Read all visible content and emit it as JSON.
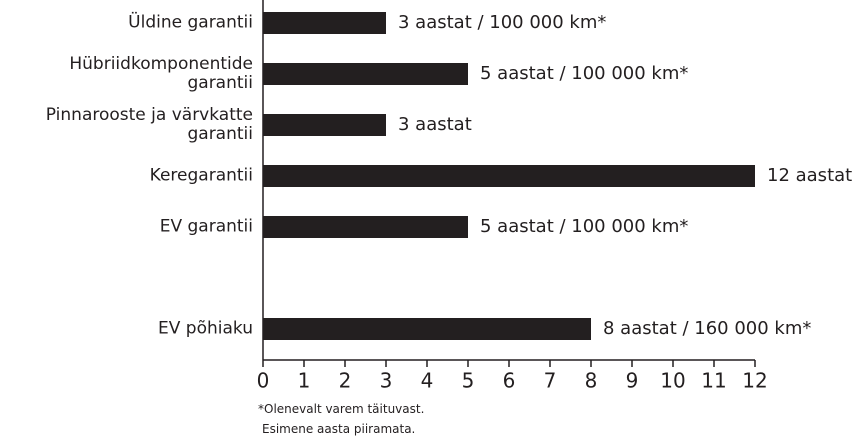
{
  "chart_data": {
    "type": "barh",
    "categories": [
      "Üldine garantii",
      "Hübriidkomponentide\ngarantii",
      "Pinnarooste ja värvkatte\ngarantii",
      "Keregarantii",
      "EV garantii",
      null,
      "EV põhiaku"
    ],
    "values": [
      3,
      5,
      3,
      12,
      5,
      null,
      8
    ],
    "value_labels": [
      "3 aastat / 100 000 km*",
      "5 aastat / 100 000 km*",
      "3 aastat",
      "12 aastat",
      "5 aastat / 100 000 km*",
      null,
      "8 aastat / 160 000 km*"
    ],
    "color": "#231f20",
    "xlim": [
      0,
      12
    ],
    "xticks": [
      0,
      1,
      2,
      3,
      4,
      5,
      6,
      7,
      8,
      9,
      10,
      11,
      12
    ],
    "notes": [
      "*Olenevalt varem täituvast.",
      "Esimene aasta piiramata."
    ]
  }
}
